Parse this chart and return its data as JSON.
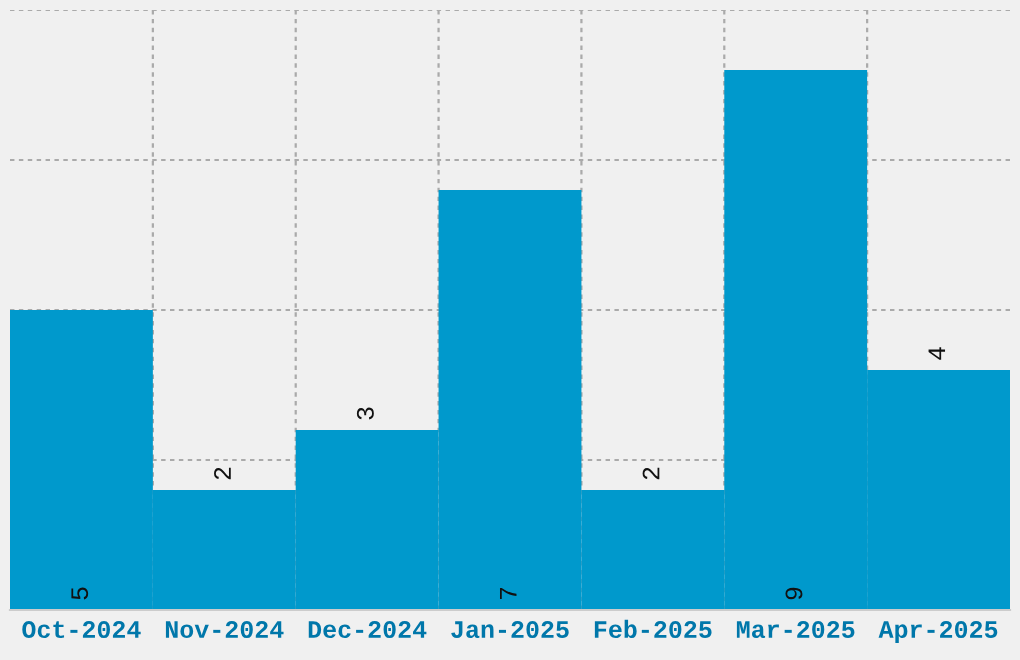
{
  "chart_data": {
    "type": "bar",
    "categories": [
      "Oct-2024",
      "Nov-2024",
      "Dec-2024",
      "Jan-2025",
      "Feb-2025",
      "Mar-2025",
      "Apr-2025"
    ],
    "values": [
      5,
      2,
      3,
      7,
      2,
      9,
      4
    ],
    "color": "#0099cc",
    "ylim": [
      0,
      10
    ],
    "yticks": [
      {
        "value": 0,
        "label": null
      },
      {
        "value": 2.5,
        "label": null
      },
      {
        "value": 5,
        "label": null
      },
      {
        "value": 7.5,
        "label": null
      },
      {
        "value": 10,
        "label": null
      }
    ],
    "tick_labels": "x",
    "grid": true,
    "data_labels": true
  }
}
